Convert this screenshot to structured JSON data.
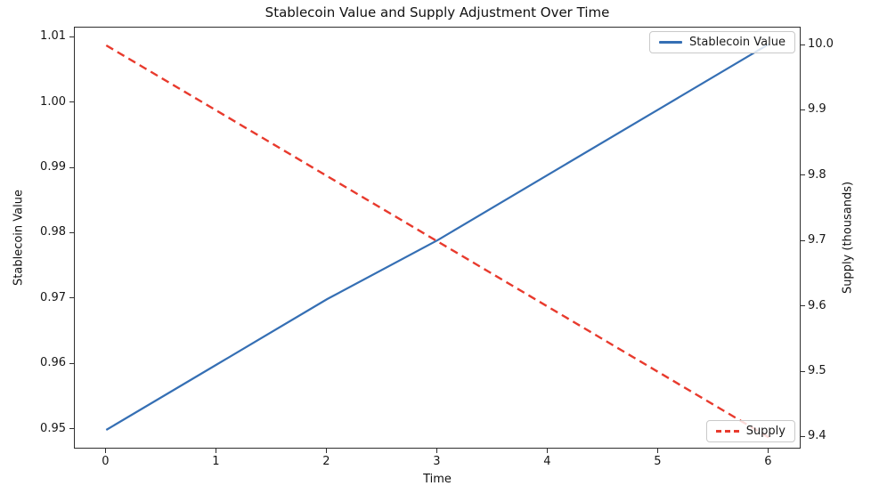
{
  "chart_data": {
    "type": "line",
    "title": "Stablecoin Value and Supply Adjustment Over Time",
    "xlabel": "Time",
    "ylabel_left": "Stablecoin Value",
    "ylabel_right": "Supply (thousands)",
    "x": [
      0,
      1,
      2,
      3,
      4,
      5,
      6
    ],
    "series": [
      {
        "name": "Stablecoin Value",
        "axis": "left",
        "style": "solid",
        "color": "#356fb4",
        "values": [
          0.95,
          0.96,
          0.97,
          0.979,
          0.989,
          0.999,
          1.009
        ]
      },
      {
        "name": "Supply",
        "axis": "right",
        "style": "dashed",
        "color": "#e83a2d",
        "values": [
          10.0,
          9.9,
          9.8,
          9.7,
          9.6,
          9.5,
          9.4
        ]
      }
    ],
    "x_ticks": {
      "values": [
        0,
        1,
        2,
        3,
        4,
        5,
        6
      ],
      "labels": [
        "0",
        "1",
        "2",
        "3",
        "4",
        "5",
        "6"
      ]
    },
    "y_ticks_left": {
      "values": [
        0.95,
        0.96,
        0.97,
        0.98,
        0.99,
        1.0,
        1.01
      ],
      "labels": [
        "0.95",
        "0.96",
        "0.97",
        "0.98",
        "0.99",
        "1.00",
        "1.01"
      ]
    },
    "y_ticks_right": {
      "values": [
        9.4,
        9.5,
        9.6,
        9.7,
        9.8,
        9.9,
        10.0
      ],
      "labels": [
        "9.4",
        "9.5",
        "9.6",
        "9.7",
        "9.8",
        "9.9",
        "10.0"
      ]
    },
    "xlim": [
      -0.285,
      6.295
    ],
    "ylim_left": [
      0.947,
      1.0115
    ],
    "ylim_right": [
      9.3816,
      10.0273
    ],
    "grid": false,
    "legends": [
      {
        "label": "Stablecoin Value",
        "position": "top-right",
        "style": "solid"
      },
      {
        "label": "Supply",
        "position": "bottom-right",
        "style": "dashed"
      }
    ]
  }
}
